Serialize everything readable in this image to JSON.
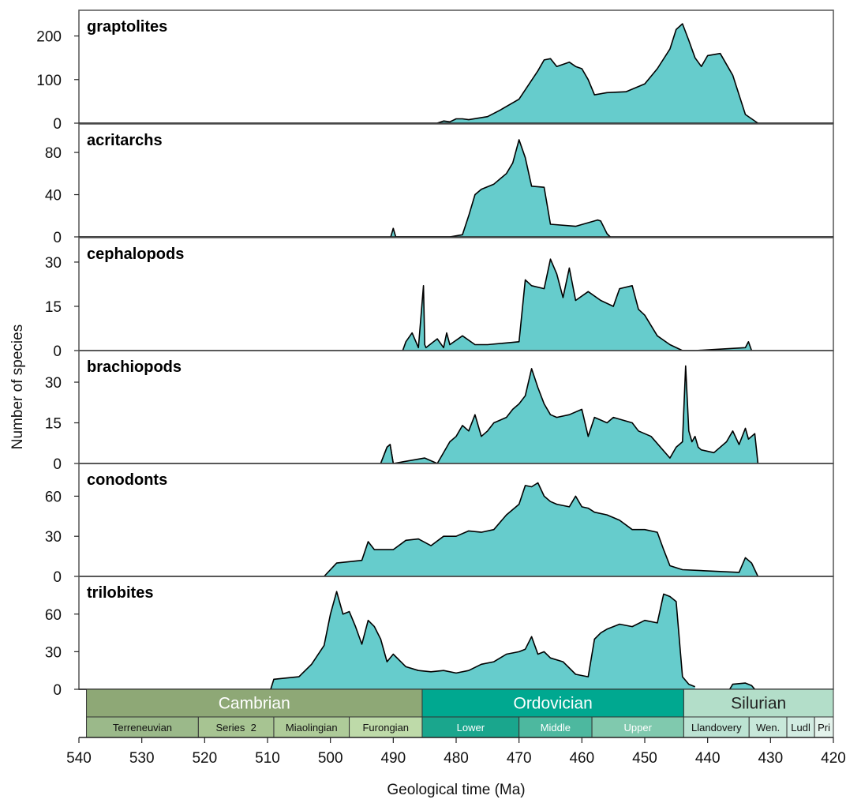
{
  "chart_data": {
    "type": "area",
    "xlabel": "Geological time (Ma)",
    "ylabel": "Number of species",
    "xlim": [
      540,
      420
    ],
    "x_ticks": [
      540,
      530,
      520,
      510,
      500,
      490,
      480,
      470,
      460,
      450,
      440,
      430,
      420
    ],
    "fill_color": "#66CCCC",
    "line_color": "#000000",
    "panels": [
      {
        "name": "graptolites",
        "ylim": [
          0,
          230
        ],
        "y_ticks": [
          0,
          100,
          200
        ],
        "x": [
          483,
          482,
          481,
          480,
          479,
          478,
          475,
          473,
          470,
          467,
          466,
          465,
          464,
          462,
          461,
          460,
          459,
          458,
          456,
          453,
          450,
          448,
          446,
          445,
          444,
          443,
          442,
          441,
          440,
          438,
          436,
          434,
          432
        ],
        "values": [
          0,
          5,
          3,
          10,
          10,
          8,
          15,
          30,
          55,
          120,
          145,
          148,
          130,
          140,
          130,
          125,
          100,
          65,
          70,
          72,
          90,
          125,
          170,
          215,
          228,
          190,
          150,
          130,
          155,
          160,
          110,
          20,
          0
        ]
      },
      {
        "name": "acritarchs",
        "ylim": [
          0,
          95
        ],
        "y_ticks": [
          0,
          40,
          80
        ],
        "x": [
          490.3,
          490,
          489.7,
          481,
          479,
          478,
          477,
          476,
          474,
          472,
          471,
          470,
          469,
          468,
          466,
          465,
          461,
          457.5,
          457,
          456,
          455.5
        ],
        "values": [
          0,
          8,
          0,
          0,
          2,
          20,
          40,
          45,
          50,
          60,
          70,
          92,
          75,
          48,
          47,
          12,
          10,
          16,
          15,
          3,
          0
        ],
        "extra_area": {
          "x": [
            490.4,
            490,
            489.6
          ],
          "values": [
            0,
            8,
            0
          ]
        }
      },
      {
        "name": "cephalopods",
        "ylim": [
          0,
          34
        ],
        "y_ticks": [
          0,
          15,
          30
        ],
        "x": [
          488.5,
          488,
          487,
          486,
          485.2,
          485,
          484.8,
          483,
          482,
          481.5,
          481,
          479,
          477,
          475,
          470,
          469,
          468,
          466,
          465,
          464,
          463,
          462,
          461,
          459,
          457,
          455,
          454,
          452,
          451,
          450,
          448,
          446,
          444
        ],
        "values": [
          0,
          3,
          6,
          1,
          22,
          2,
          1,
          4,
          1,
          6,
          2,
          5,
          2,
          2,
          3,
          24,
          22,
          21,
          31,
          26,
          18,
          28,
          17,
          20,
          17,
          15,
          21,
          22,
          14,
          12,
          5,
          2,
          0
        ],
        "extra_area": {
          "x": [
            444,
            442,
            434,
            433.5,
            433
          ],
          "values": [
            0,
            0,
            1,
            3,
            0
          ]
        }
      },
      {
        "name": "brachiopods",
        "ylim": [
          0,
          37
        ],
        "y_ticks": [
          0,
          15,
          30
        ],
        "x": [
          492,
          491,
          490.5,
          490,
          485,
          483,
          481,
          480,
          479,
          478,
          477,
          476,
          475,
          474,
          472,
          471,
          470,
          469,
          468,
          467,
          466,
          465,
          464,
          462,
          460,
          459,
          458,
          456,
          455,
          452,
          451,
          449,
          446,
          445,
          444,
          443.5,
          443,
          442.5,
          442,
          441.5,
          441,
          439,
          437,
          436,
          435,
          434.5,
          434,
          433.5,
          432.5,
          432
        ],
        "values": [
          0,
          6,
          7,
          0,
          2,
          0,
          8,
          10,
          14,
          12,
          18,
          10,
          12,
          15,
          17,
          20,
          22,
          25,
          35,
          28,
          22,
          18,
          17,
          18,
          20,
          10,
          17,
          15,
          17,
          15,
          12,
          10,
          2,
          6,
          8,
          36,
          12,
          8,
          10,
          6,
          5,
          4,
          8,
          12,
          7,
          10,
          13,
          9,
          11,
          0
        ],
        "extra_area": {
          "x": [
            492,
            491,
            490.5,
            490
          ],
          "values": [
            0,
            6,
            7,
            0
          ]
        }
      },
      {
        "name": "conodonts",
        "ylim": [
          0,
          75
        ],
        "y_ticks": [
          0,
          30,
          60
        ],
        "x": [
          501,
          499,
          495,
          494,
          493,
          490,
          488,
          486,
          484,
          482,
          480,
          478,
          476,
          474,
          472,
          470,
          469,
          468,
          467,
          466,
          465,
          464,
          462,
          461,
          460,
          459,
          458,
          456,
          454,
          452,
          450,
          448,
          447,
          446,
          444,
          435,
          434,
          433,
          432
        ],
        "values": [
          0,
          10,
          12,
          26,
          20,
          20,
          27,
          28,
          23,
          30,
          30,
          34,
          33,
          35,
          46,
          54,
          68,
          67,
          70,
          60,
          56,
          54,
          52,
          60,
          52,
          51,
          48,
          46,
          42,
          35,
          35,
          33,
          20,
          8,
          5,
          3,
          14,
          10,
          0
        ]
      },
      {
        "name": "trilobites",
        "ylim": [
          0,
          80
        ],
        "y_ticks": [
          0,
          30,
          60
        ],
        "x": [
          509.5,
          509,
          505,
          503,
          501,
          500,
          499,
          498,
          497,
          496,
          495,
          494,
          493,
          492,
          491,
          490,
          488,
          486,
          484,
          482,
          480,
          478,
          476,
          474,
          472,
          470,
          469,
          468,
          467,
          466,
          465,
          463,
          461,
          459,
          458,
          457,
          456,
          455,
          454,
          452,
          450,
          448,
          447,
          446,
          445,
          444,
          443,
          442
        ],
        "values": [
          0,
          8,
          10,
          20,
          35,
          60,
          78,
          60,
          62,
          50,
          36,
          55,
          50,
          40,
          22,
          28,
          18,
          15,
          14,
          15,
          13,
          15,
          20,
          22,
          28,
          30,
          32,
          42,
          28,
          30,
          25,
          22,
          12,
          10,
          40,
          45,
          48,
          50,
          52,
          50,
          55,
          53,
          76,
          74,
          70,
          10,
          4,
          2
        ],
        "extra_area": {
          "x": [
            436.5,
            436,
            434,
            433,
            432.5
          ],
          "values": [
            0,
            4,
            5,
            3,
            0
          ]
        }
      }
    ],
    "periods": [
      {
        "name": "Cambrian",
        "from": 538.8,
        "to": 485.4,
        "color": "#8EA876",
        "text_color": "#FFFFFF"
      },
      {
        "name": "Ordovician",
        "from": 485.4,
        "to": 443.8,
        "color": "#00A890",
        "text_color": "#FFFFFF"
      },
      {
        "name": "Silurian",
        "from": 443.8,
        "to": 419,
        "color": "#B3DEC9",
        "text_color": "#222222"
      }
    ],
    "series": [
      {
        "name": "Terreneuvian",
        "from": 538.8,
        "to": 521,
        "color": "#9BB98A",
        "text_color": "#111111"
      },
      {
        "name": "Series  2",
        "from": 521,
        "to": 509,
        "color": "#A7C492",
        "text_color": "#111111"
      },
      {
        "name": "Miaolingian",
        "from": 509,
        "to": 497,
        "color": "#AECB99",
        "text_color": "#111111"
      },
      {
        "name": "Furongian",
        "from": 497,
        "to": 485.4,
        "color": "#BEDAA9",
        "text_color": "#111111"
      },
      {
        "name": "Lower",
        "from": 485.4,
        "to": 470,
        "color": "#1AA68D",
        "text_color": "#FFFFFF"
      },
      {
        "name": "Middle",
        "from": 470,
        "to": 458.4,
        "color": "#4DB89F",
        "text_color": "#FFFFFF"
      },
      {
        "name": "Upper",
        "from": 458.4,
        "to": 443.8,
        "color": "#80C9AE",
        "text_color": "#FFFFFF"
      },
      {
        "name": "Llandovery",
        "from": 443.8,
        "to": 433.4,
        "color": "#BCE3D3",
        "text_color": "#111111"
      },
      {
        "name": "Wen.",
        "from": 433.4,
        "to": 427.4,
        "color": "#C8E8DA",
        "text_color": "#111111"
      },
      {
        "name": "Ludl",
        "from": 427.4,
        "to": 423,
        "color": "#D2ECE2",
        "text_color": "#111111"
      },
      {
        "name": "Pri",
        "from": 423,
        "to": 419,
        "color": "#E4F3EC",
        "text_color": "#111111"
      }
    ]
  }
}
